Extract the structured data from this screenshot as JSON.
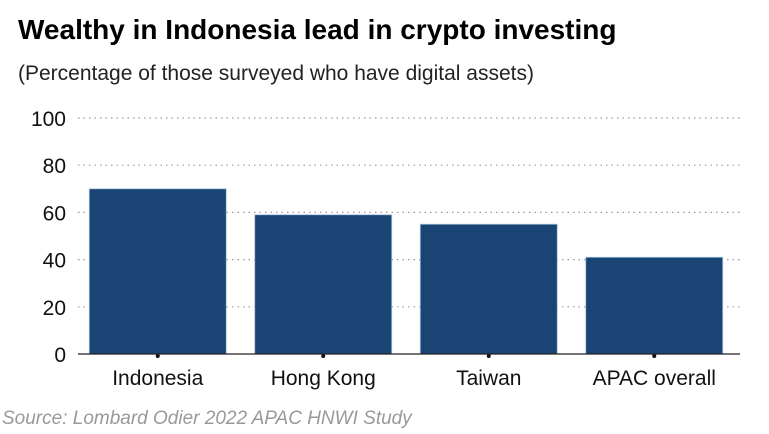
{
  "chart_data": {
    "type": "bar",
    "title": "Wealthy in Indonesia lead in crypto investing",
    "subtitle": "(Percentage of those surveyed who have digital assets)",
    "categories": [
      "Indonesia",
      "Hong Kong",
      "Taiwan",
      "APAC overall"
    ],
    "values": [
      70,
      59,
      55,
      41
    ],
    "ylim": [
      0,
      100
    ],
    "yticks": [
      0,
      20,
      40,
      60,
      80,
      100
    ],
    "xlabel": "",
    "ylabel": "",
    "grid": "horizontal dotted",
    "bar_color": "#1a4474",
    "source": "Source: Lombard Odier 2022 APAC HNWI Study"
  }
}
